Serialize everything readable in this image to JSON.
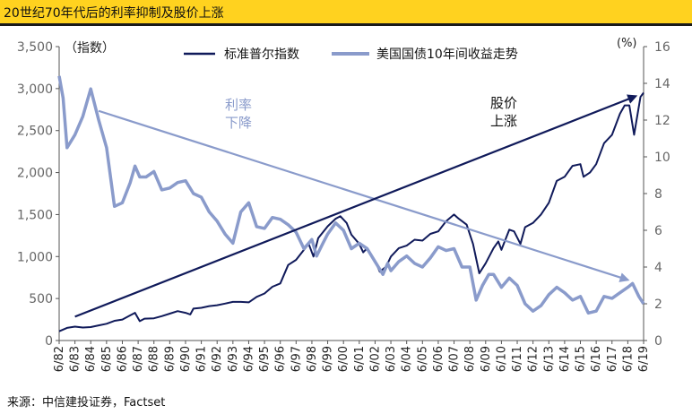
{
  "header": {
    "title": "20世纪70年代后的利率抑制及股价上涨"
  },
  "source": "来源：中信建投证券，Factset",
  "colors": {
    "title_bg": "#FFD21F",
    "series_sp": "#101A5A",
    "series_bond": "#8A9BCB",
    "arrow_up": "#101A5A",
    "arrow_down": "#8A9BCB"
  },
  "chart_data": {
    "type": "line",
    "title": "20世纪70年代后的利率抑制及股价上涨",
    "left_axis": {
      "label": "（指数）",
      "ylim": [
        0,
        3500
      ],
      "ticks": [
        "0",
        "500",
        "1,000",
        "1,500",
        "2,000",
        "2,500",
        "3,000",
        "3,500"
      ]
    },
    "right_axis": {
      "label": "(%)",
      "ylim": [
        0,
        16
      ],
      "ticks": [
        "0",
        "2",
        "4",
        "6",
        "8",
        "10",
        "12",
        "14",
        "16"
      ]
    },
    "categories": [
      "6/82",
      "6/83",
      "6/84",
      "6/85",
      "6/86",
      "6/87",
      "6/88",
      "6/89",
      "6/90",
      "6/91",
      "6/92",
      "6/93",
      "6/94",
      "6/95",
      "6/96",
      "6/97",
      "6/98",
      "6/99",
      "6/00",
      "6/01",
      "6/02",
      "6/03",
      "6/04",
      "6/05",
      "6/06",
      "6/07",
      "6/08",
      "6/09",
      "6/10",
      "6/11",
      "6/12",
      "6/13",
      "6/14",
      "6/15",
      "6/16",
      "6/17",
      "6/18",
      "6/19"
    ],
    "series": [
      {
        "name": "标准普尔指数",
        "axis": "left",
        "x": [
          1982.5,
          1983,
          1983.5,
          1984,
          1984.5,
          1985,
          1985.5,
          1986,
          1986.5,
          1987,
          1987.3,
          1987.6,
          1987.9,
          1988.5,
          1989,
          1989.5,
          1990,
          1990.5,
          1990.8,
          1991,
          1991.5,
          1992,
          1992.5,
          1993,
          1993.5,
          1994,
          1994.5,
          1995,
          1995.5,
          1996,
          1996.5,
          1997,
          1997.5,
          1998,
          1998.3,
          1998.6,
          1998.9,
          1999.5,
          2000,
          2000.3,
          2000.7,
          2001,
          2001.5,
          2001.75,
          2002,
          2002.5,
          2002.8,
          2003.2,
          2003.5,
          2004,
          2004.5,
          2005,
          2005.5,
          2006,
          2006.5,
          2007,
          2007.5,
          2007.8,
          2008.3,
          2008.7,
          2009.1,
          2009.5,
          2010,
          2010.3,
          2010.5,
          2011,
          2011.3,
          2011.7,
          2012,
          2012.5,
          2013,
          2013.5,
          2014,
          2014.5,
          2015,
          2015.5,
          2015.7,
          2016.1,
          2016.5,
          2017,
          2017.5,
          2018,
          2018.3,
          2018.6,
          2018.9,
          2019.3,
          2019.5
        ],
        "y": [
          110,
          150,
          165,
          155,
          160,
          180,
          200,
          235,
          250,
          300,
          330,
          230,
          260,
          265,
          290,
          320,
          350,
          330,
          310,
          380,
          390,
          410,
          420,
          440,
          460,
          460,
          455,
          520,
          560,
          640,
          680,
          900,
          960,
          1080,
          1150,
          1000,
          1220,
          1360,
          1450,
          1480,
          1400,
          1260,
          1150,
          1050,
          1100,
          950,
          820,
          880,
          1000,
          1100,
          1130,
          1200,
          1190,
          1270,
          1300,
          1420,
          1500,
          1450,
          1380,
          1150,
          800,
          920,
          1100,
          1180,
          1080,
          1320,
          1300,
          1150,
          1350,
          1400,
          1500,
          1640,
          1900,
          1950,
          2080,
          2100,
          1950,
          2000,
          2100,
          2350,
          2450,
          2700,
          2800,
          2800,
          2450,
          2900,
          2950
        ]
      },
      {
        "name": "美国国债10年间收益走势",
        "axis": "right",
        "x": [
          1982.5,
          1982.75,
          1983,
          1983.5,
          1984,
          1984.5,
          1985,
          1985.5,
          1986,
          1986.5,
          1987,
          1987.3,
          1987.6,
          1988,
          1988.5,
          1989,
          1989.5,
          1990,
          1990.5,
          1991,
          1991.5,
          1992,
          1992.5,
          1993,
          1993.5,
          1994,
          1994.5,
          1995,
          1995.5,
          1996,
          1996.5,
          1997,
          1997.5,
          1998,
          1998.5,
          1998.8,
          1999.2,
          1999.5,
          2000,
          2000.5,
          2001,
          2001.5,
          2002,
          2002.5,
          2003,
          2003.3,
          2003.5,
          2004,
          2004.5,
          2005,
          2005.5,
          2006,
          2006.5,
          2007,
          2007.5,
          2008,
          2008.5,
          2008.9,
          2009.3,
          2009.7,
          2010,
          2010.5,
          2011,
          2011.5,
          2012,
          2012.5,
          2013,
          2013.5,
          2014,
          2014.5,
          2015,
          2015.5,
          2016,
          2016.5,
          2017,
          2017.5,
          2018,
          2018.5,
          2018.8,
          2019.2,
          2019.5
        ],
        "y": [
          14.4,
          13.2,
          10.5,
          11.2,
          12.2,
          13.7,
          12,
          10.5,
          7.3,
          7.5,
          8.6,
          9.5,
          8.9,
          8.9,
          9.2,
          8.2,
          8.3,
          8.6,
          8.7,
          8.0,
          7.8,
          7.0,
          6.5,
          5.8,
          5.3,
          7.0,
          7.5,
          6.2,
          6.1,
          6.7,
          6.6,
          6.3,
          5.9,
          5.0,
          5.5,
          4.6,
          5.3,
          5.8,
          6.4,
          6.0,
          5.0,
          5.3,
          5.0,
          4.3,
          3.6,
          4.2,
          3.8,
          4.3,
          4.6,
          4.2,
          4.0,
          4.5,
          5.1,
          4.9,
          5.0,
          4.0,
          4.0,
          2.2,
          3.0,
          3.6,
          3.6,
          2.9,
          3.4,
          3.0,
          2.0,
          1.6,
          1.9,
          2.5,
          2.9,
          2.6,
          2.2,
          2.4,
          1.5,
          1.6,
          2.4,
          2.3,
          2.6,
          2.9,
          3.1,
          2.4,
          2.0
        ]
      }
    ],
    "annotations": [
      {
        "text_lines": [
          "利率",
          "下降"
        ],
        "kind": "arrow-down",
        "from": [
          1985,
          12.5
        ],
        "to": [
          2018.5,
          3.3
        ]
      },
      {
        "text_lines": [
          "股价",
          "上涨"
        ],
        "kind": "arrow-up",
        "from": [
          1983.5,
          1.3
        ],
        "to": [
          2019,
          13.3
        ]
      }
    ],
    "legend": {
      "placement": "top-center",
      "entries": [
        "标准普尔指数",
        "美国国债10年间收益走势"
      ]
    }
  }
}
